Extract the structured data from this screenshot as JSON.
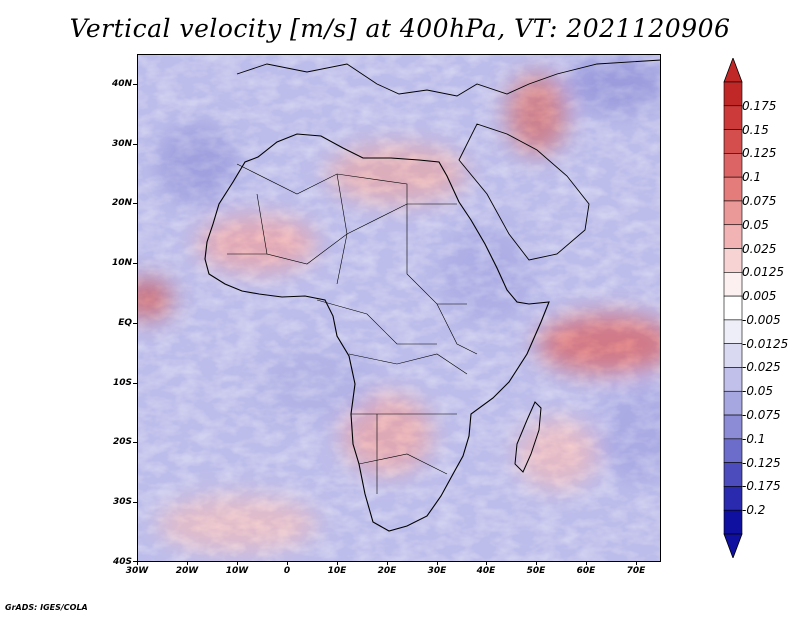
{
  "title": "Vertical velocity [m/s] at 400hPa, VT: 2021120906",
  "footer": "GrADS: IGES/COLA",
  "map": {
    "lat_labels": [
      "40N",
      "30N",
      "20N",
      "10N",
      "EQ",
      "10S",
      "20S",
      "30S",
      "40S"
    ],
    "lon_labels": [
      "30W",
      "20W",
      "10W",
      "0",
      "10E",
      "20E",
      "30E",
      "40E",
      "50E",
      "60E",
      "70E"
    ],
    "lat_range": [
      -40,
      45
    ],
    "lon_range": [
      -30,
      75
    ]
  },
  "colorbar": {
    "labels": [
      "0.175",
      "0.15",
      "0.125",
      "0.1",
      "0.075",
      "0.05",
      "0.025",
      "0.0125",
      "0.005",
      "-0.005",
      "-0.0125",
      "-0.025",
      "-0.05",
      "-0.075",
      "-0.1",
      "-0.125",
      "-0.175",
      "-0.2"
    ],
    "colors": [
      "#c02828",
      "#cc3a3a",
      "#d54e4e",
      "#dd6464",
      "#e47c7c",
      "#eb9898",
      "#f1b3b3",
      "#f7d3d3",
      "#fdf0f0",
      "#ffffff",
      "#eeeef9",
      "#d9d9f2",
      "#c0c0ea",
      "#a6a6e0",
      "#8b8bd6",
      "#6c6ccb",
      "#4c4cbd",
      "#2a2aae",
      "#1010a0"
    ]
  }
}
